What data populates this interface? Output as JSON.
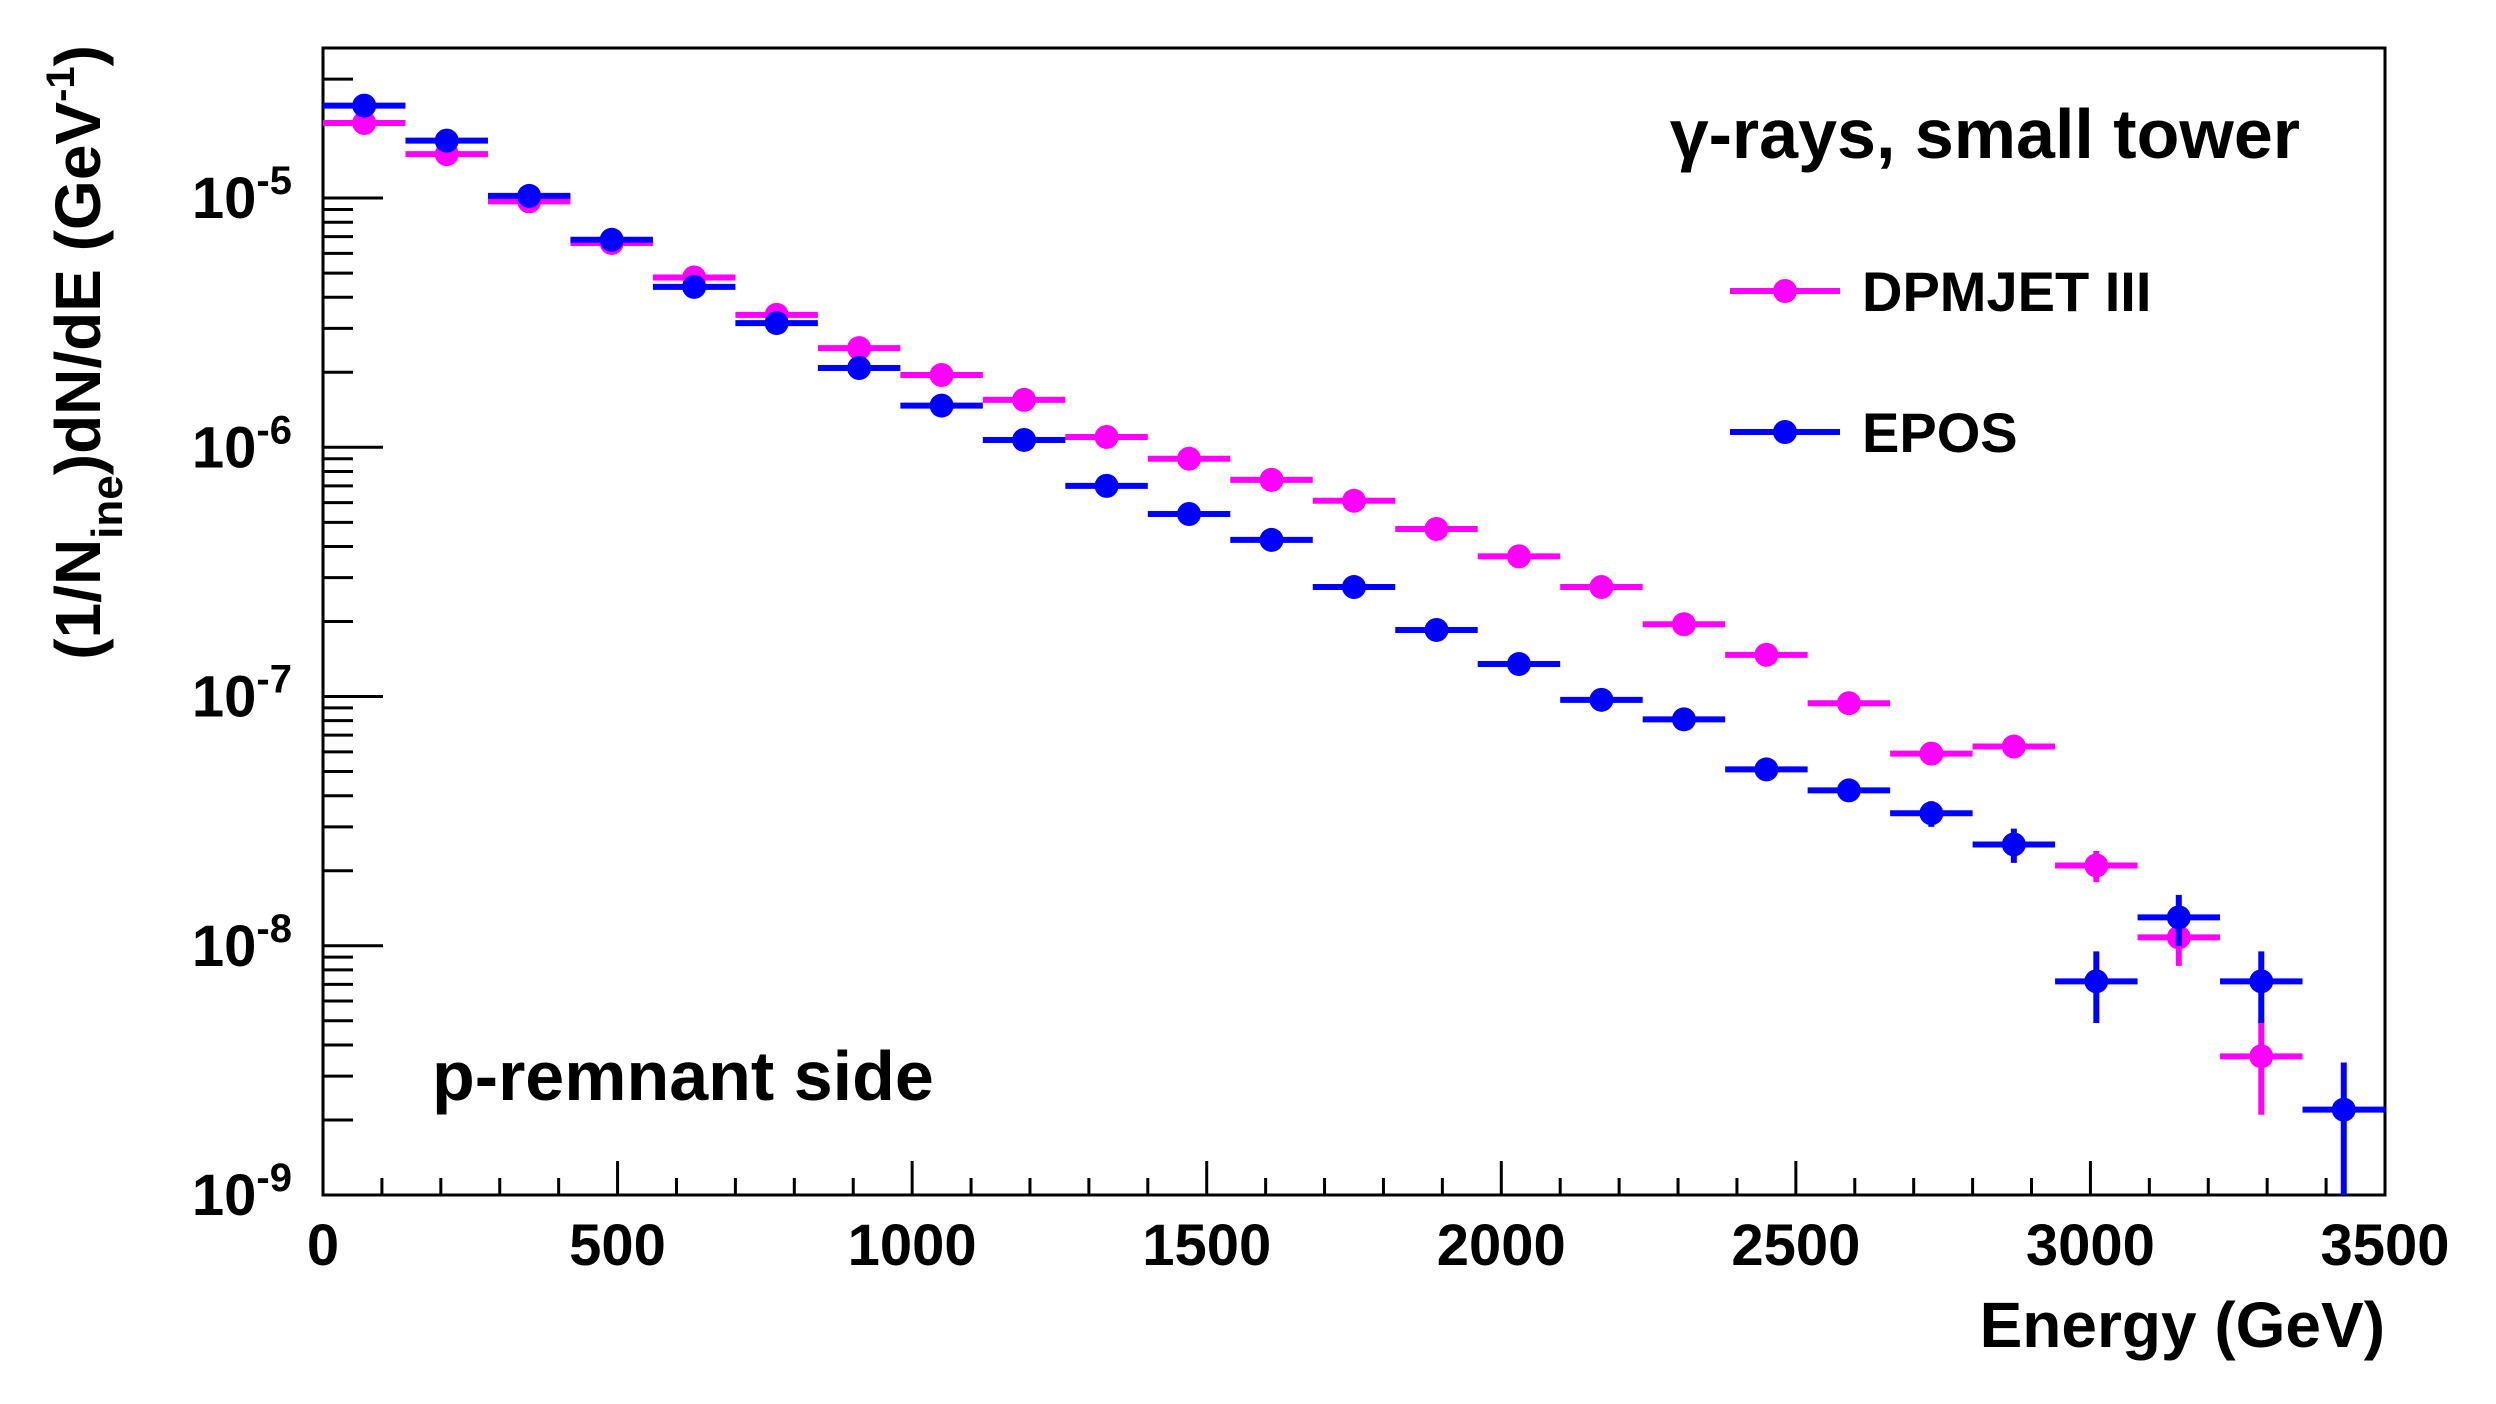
{
  "chart_data": {
    "type": "scatter",
    "title": "",
    "xlabel": "Energy (GeV)",
    "ylabel_parts": {
      "a": "(1/N",
      "sub": "ine",
      "b": ")dN/dE (GeV",
      "sup": "-1",
      "c": ")"
    },
    "xlim": [
      0,
      3500
    ],
    "ylim": [
      1e-09,
      4e-05
    ],
    "yscale": "log",
    "x_ticks": [
      "0",
      "500",
      "1000",
      "1500",
      "2000",
      "2500",
      "3000",
      "3500"
    ],
    "y_ticks": [
      {
        "base": "10",
        "exp": "-9"
      },
      {
        "base": "10",
        "exp": "-8"
      },
      {
        "base": "10",
        "exp": "-7"
      },
      {
        "base": "10",
        "exp": "-6"
      },
      {
        "base": "10",
        "exp": "-5"
      }
    ],
    "annotations": {
      "top_right": "γ-rays, small tower",
      "bottom_left": "p-remnant side"
    },
    "legend_position": "top-right",
    "series": [
      {
        "name": "DPMJET III",
        "color": "#ff00ff",
        "x": [
          70,
          210,
          350,
          490,
          630,
          770,
          910,
          1050,
          1190,
          1330,
          1470,
          1610,
          1750,
          1890,
          2030,
          2170,
          2310,
          2450,
          2590,
          2730,
          2870,
          3010,
          3150,
          3290
        ],
        "y": [
          2e-05,
          1.5e-05,
          9.7e-06,
          6.6e-06,
          4.8e-06,
          3.4e-06,
          2.5e-06,
          1.95e-06,
          1.55e-06,
          1.1e-06,
          9e-07,
          7.4e-07,
          6.1e-07,
          4.7e-07,
          3.65e-07,
          2.75e-07,
          1.95e-07,
          1.47e-07,
          9.4e-08,
          5.9e-08,
          6.3e-08,
          2.1e-08,
          1.08e-08,
          3.6e-09
        ],
        "y_err": [
          0,
          0,
          0,
          0,
          0,
          0,
          0,
          0,
          0,
          0,
          0,
          0,
          0,
          0,
          0,
          0,
          0,
          0,
          0,
          0,
          0,
          3e-09,
          2.5e-09,
          1.5e-09
        ],
        "x_halfwidth": 70
      },
      {
        "name": "EPOS",
        "color": "#0000ff",
        "x": [
          70,
          210,
          350,
          490,
          630,
          770,
          910,
          1050,
          1190,
          1330,
          1470,
          1610,
          1750,
          1890,
          2030,
          2170,
          2310,
          2450,
          2590,
          2730,
          2870,
          3010,
          3150,
          3290,
          3430
        ],
        "y": [
          2.35e-05,
          1.7e-05,
          1.02e-05,
          6.8e-06,
          4.4e-06,
          3.15e-06,
          2.08e-06,
          1.47e-06,
          1.07e-06,
          7e-07,
          5.4e-07,
          4.25e-07,
          2.75e-07,
          1.85e-07,
          1.35e-07,
          9.7e-08,
          8.1e-08,
          5.1e-08,
          4.2e-08,
          3.4e-08,
          2.55e-08,
          7.2e-09,
          1.3e-08,
          7.2e-09,
          2.2e-09
        ],
        "y_err": [
          0,
          0,
          0,
          0,
          0,
          0,
          0,
          0,
          0,
          0,
          0,
          0,
          0,
          0,
          0,
          0,
          0,
          0,
          0,
          4e-09,
          4e-09,
          2.3e-09,
          3e-09,
          2.3e-09,
          1.2e-09
        ],
        "x_halfwidth": 70
      }
    ]
  }
}
